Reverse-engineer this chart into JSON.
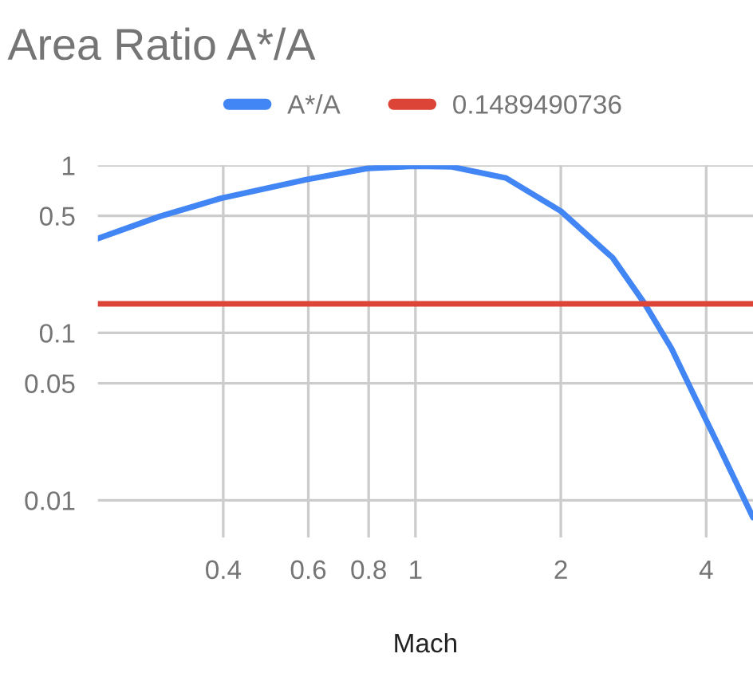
{
  "chart_data": {
    "type": "line",
    "title": "Area Ratio A*/A",
    "xlabel": "Mach",
    "log": "xy",
    "grid": true,
    "legend": "top",
    "xlim": [
      0.22,
      5
    ],
    "ylim": [
      0.006,
      1
    ],
    "xticks": [
      0.4,
      0.6,
      0.8,
      1,
      2,
      4
    ],
    "yticks": [
      0.01,
      0.05,
      0.1,
      0.5,
      1
    ],
    "series": [
      {
        "name": "A*/A",
        "color": "#4285f4",
        "x": [
          0.22,
          0.295,
          0.395,
          0.594,
          0.796,
          1.0,
          1.19,
          1.54,
          2.0,
          2.56,
          2.98,
          3.39,
          3.75,
          4.26,
          4.71,
          5.0
        ],
        "values": [
          0.366,
          0.495,
          0.635,
          0.822,
          0.96,
          0.99,
          0.98,
          0.84,
          0.533,
          0.281,
          0.15,
          0.0806,
          0.044,
          0.0207,
          0.0113,
          0.0079
        ]
      },
      {
        "name": "0.1489490736",
        "color": "#db4437",
        "x": [
          0.22,
          5
        ],
        "values": [
          0.1489490736,
          0.1489490736
        ]
      }
    ]
  }
}
